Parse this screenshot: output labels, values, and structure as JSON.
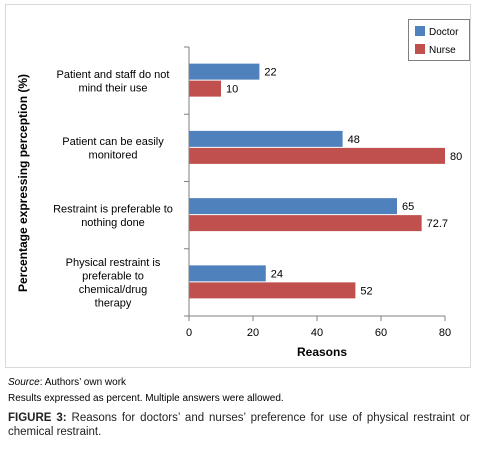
{
  "chart_data": {
    "type": "bar",
    "orientation": "horizontal",
    "categories": [
      [
        "Patient and staff do not",
        "mind their use"
      ],
      [
        "Patient can be easily",
        "monitored"
      ],
      [
        "Restraint is preferable to",
        "nothing done"
      ],
      [
        "Physical restraint is",
        "preferable to",
        "chemical/drug",
        "therapy"
      ]
    ],
    "series": [
      {
        "name": "Doctor",
        "values": [
          22,
          48,
          65,
          24
        ],
        "labels": [
          "22",
          "48",
          "65",
          "24"
        ],
        "color": "#4f81bd"
      },
      {
        "name": "Nurse",
        "values": [
          10,
          80,
          72.7,
          52
        ],
        "labels": [
          "10",
          "80",
          "72.7",
          "52"
        ],
        "color": "#c0504d"
      }
    ],
    "xlabel": "Reasons",
    "ylabel": "Percentage expressing perception (%)",
    "xlim": [
      0,
      80
    ],
    "xticks": [
      0,
      20,
      40,
      60,
      80
    ],
    "grid": false,
    "legend_position": "top-right"
  },
  "source_prefix": "Source",
  "source_text": ": Authors’ own work",
  "note": "Results expressed as percent. Multiple answers were allowed.",
  "figure_label": "FIGURE 3:",
  "figure_caption": " Reasons for doctors’ and nurses’ preference for use of physical restraint or chemical restraint."
}
